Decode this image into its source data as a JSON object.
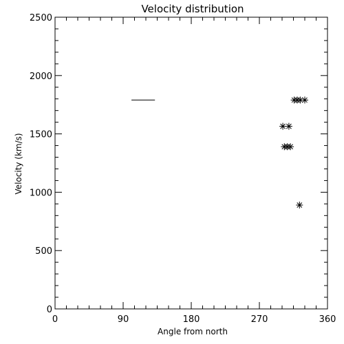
{
  "chart_data": {
    "type": "scatter",
    "title": "Velocity distribution",
    "xlabel": "Angle from north",
    "ylabel": "Velocity (km/s)",
    "xlim": [
      0,
      360
    ],
    "ylim": [
      0,
      2500
    ],
    "xticks": [
      0,
      90,
      180,
      270,
      360
    ],
    "yticks": [
      0,
      500,
      1000,
      1500,
      2000,
      2500
    ],
    "x_minor_step": 15,
    "y_minor_step": 100,
    "grid": false,
    "marker": "asterisk",
    "points": [
      {
        "x": 316,
        "y": 1790
      },
      {
        "x": 320,
        "y": 1790
      },
      {
        "x": 324,
        "y": 1790
      },
      {
        "x": 330,
        "y": 1790
      },
      {
        "x": 301,
        "y": 1565
      },
      {
        "x": 309,
        "y": 1565
      },
      {
        "x": 303,
        "y": 1390
      },
      {
        "x": 307,
        "y": 1390
      },
      {
        "x": 311,
        "y": 1390
      },
      {
        "x": 323,
        "y": 890
      }
    ],
    "segments": [
      {
        "x": [
          101,
          132
        ],
        "y": [
          1790,
          1790
        ]
      }
    ]
  }
}
